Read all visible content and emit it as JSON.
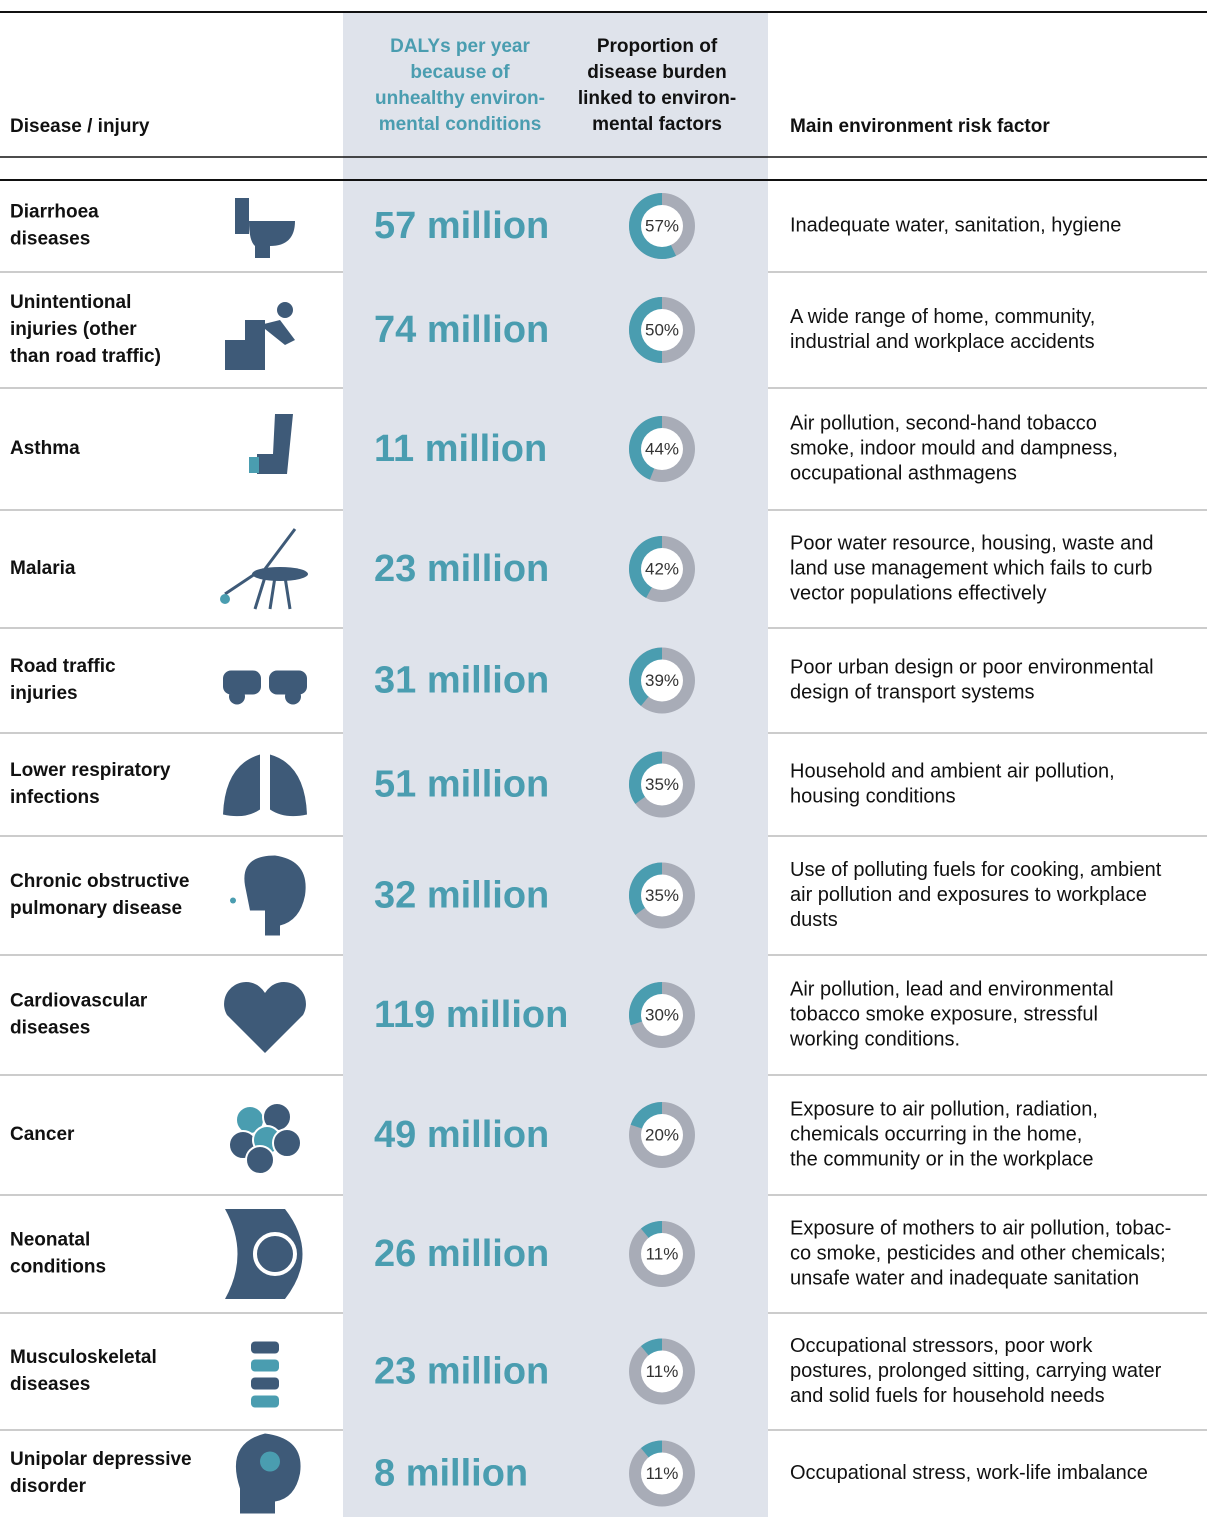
{
  "header": {
    "disease": "Disease / injury",
    "dalys": [
      "DALYs per year",
      "because of",
      "unhealthy environ-",
      "mental conditions"
    ],
    "share": [
      "Proportion of",
      "disease burden",
      "linked to environ-",
      "mental factors"
    ],
    "risk": "Main environment risk factor"
  },
  "rows": [
    {
      "disease": [
        "Diarrhoea",
        "diseases"
      ],
      "dalys": "57 million",
      "share": 57,
      "share_label": "57%",
      "risk": [
        "Inadequate water, sanitation, hygiene"
      ]
    },
    {
      "disease": [
        "Unintentional",
        "injuries (other",
        "than road traffic)"
      ],
      "dalys": "74 million",
      "share": 50,
      "share_label": "50%",
      "risk": [
        "A wide range of home, community,",
        "industrial and workplace accidents"
      ]
    },
    {
      "disease": [
        "Asthma"
      ],
      "dalys": "11 million",
      "share": 44,
      "share_label": "44%",
      "risk": [
        "Air pollution, second-hand tobacco",
        "smoke, indoor mould and dampness,",
        "occupational asthmagens"
      ]
    },
    {
      "disease": [
        "Malaria"
      ],
      "dalys": "23 million",
      "share": 42,
      "share_label": "42%",
      "risk": [
        "Poor water resource, housing, waste and",
        "land use management which fails to curb",
        "vector populations effectively"
      ]
    },
    {
      "disease": [
        "Road traffic",
        "injuries"
      ],
      "dalys": "31 million",
      "share": 39,
      "share_label": "39%",
      "risk": [
        "Poor urban design or poor environmental",
        "design of transport systems"
      ]
    },
    {
      "disease": [
        "Lower respiratory",
        "infections"
      ],
      "dalys": "51 million",
      "share": 35,
      "share_label": "35%",
      "risk": [
        "Household and ambient air pollution,",
        "housing conditions"
      ]
    },
    {
      "disease": [
        "Chronic obstructive",
        "pulmonary disease"
      ],
      "dalys": "32 million",
      "share": 35,
      "share_label": "35%",
      "risk": [
        "Use of polluting fuels for cooking, ambient",
        "air pollution and exposures to workplace",
        "dusts"
      ]
    },
    {
      "disease": [
        "Cardiovascular",
        "diseases"
      ],
      "dalys": "119 million",
      "share": 30,
      "share_label": "30%",
      "risk": [
        "Air pollution, lead and environmental",
        "tobacco smoke exposure, stressful",
        "working conditions."
      ]
    },
    {
      "disease": [
        "Cancer"
      ],
      "dalys": "49 million",
      "share": 20,
      "share_label": "20%",
      "risk": [
        "Exposure to air pollution, radiation,",
        "chemicals occurring in the home,",
        "the community or in the workplace"
      ]
    },
    {
      "disease": [
        "Neonatal",
        "conditions"
      ],
      "dalys": "26 million",
      "share": 11,
      "share_label": "11%",
      "risk": [
        "Exposure of mothers to air pollution, tobac-",
        "co smoke, pesticides and other chemicals;",
        "unsafe water and inadequate sanitation"
      ]
    },
    {
      "disease": [
        "Musculoskeletal",
        "diseases"
      ],
      "dalys": "23 million",
      "share": 11,
      "share_label": "11%",
      "risk": [
        "Occupational stressors, poor work",
        "postures, prolonged sitting, carrying water",
        "and solid fuels for household needs"
      ]
    },
    {
      "disease": [
        "Unipolar depressive",
        "disorder"
      ],
      "dalys": "8 million",
      "share": 11,
      "share_label": "11%",
      "risk": [
        "Occupational stress, work-life imbalance"
      ]
    }
  ]
}
